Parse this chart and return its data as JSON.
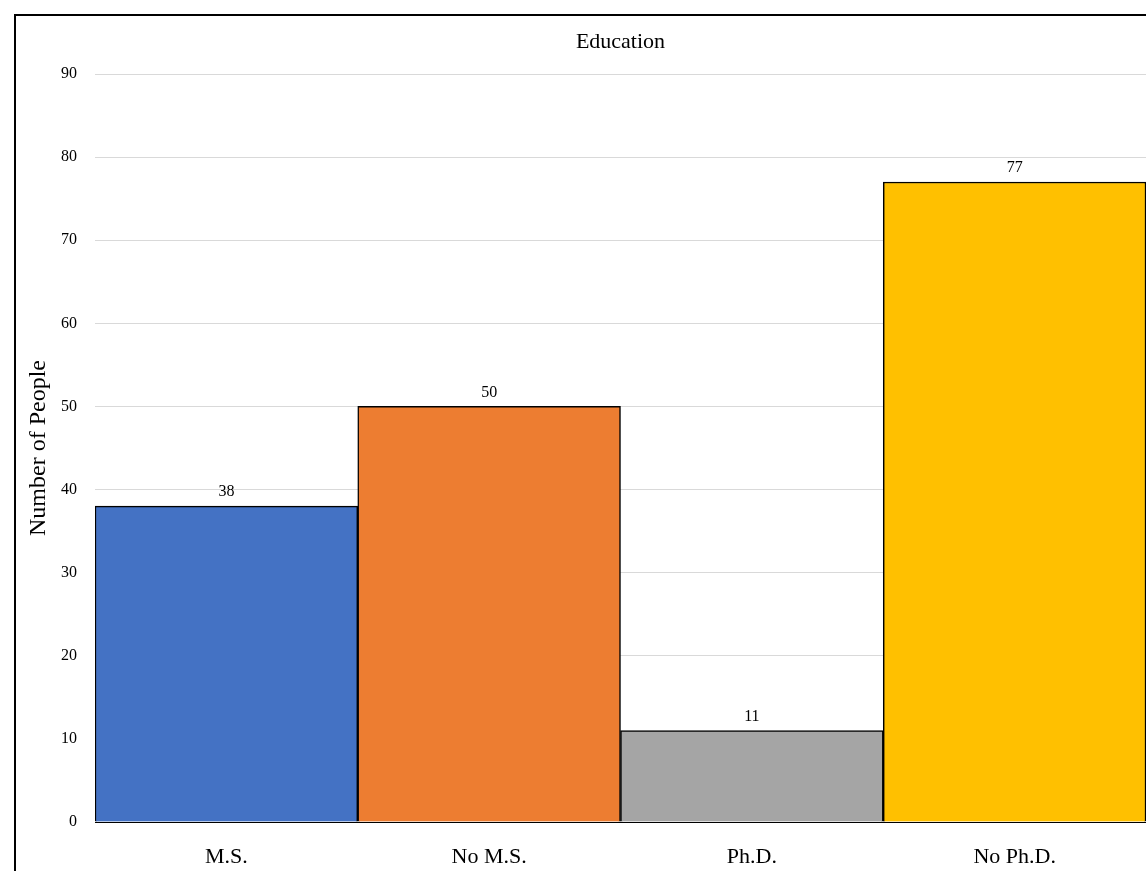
{
  "chart_data": {
    "type": "bar",
    "title": "Education",
    "ylabel": "Number of People",
    "categories": [
      "M.S.",
      "No M.S.",
      "Ph.D.",
      "No Ph.D."
    ],
    "values": [
      38,
      50,
      11,
      77
    ],
    "colors": [
      "#4472c4",
      "#ed7d31",
      "#a5a5a5",
      "#ffc000"
    ],
    "ylim": [
      0,
      90
    ],
    "yticks": [
      0,
      10,
      20,
      30,
      40,
      50,
      60,
      70,
      80,
      90
    ],
    "grid": "y",
    "data_labels": true
  }
}
